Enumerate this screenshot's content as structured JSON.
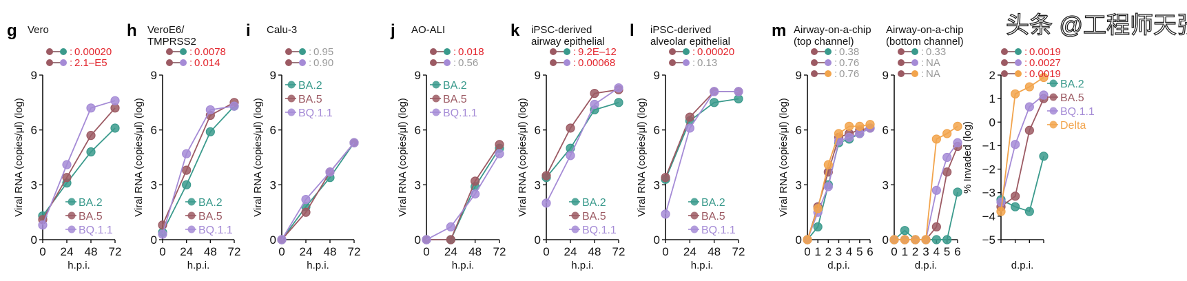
{
  "colors": {
    "BA.2": "#3a9a8c",
    "BA.5": "#9c5a63",
    "BQ.1.1": "#a58bd6",
    "Delta": "#f2a44c",
    "sig": "#e3262e",
    "ns": "#9a9a9a"
  },
  "watermark": "头条 @工程师天张",
  "chart_data": [
    {
      "id": "g",
      "letter": "g",
      "title": [
        "Vero"
      ],
      "type": "line",
      "ylabel": "Viral RNA (copies/μl) (log)",
      "xlabel": "h.p.i.",
      "x": [
        0,
        24,
        48,
        72
      ],
      "xticks": [
        "0",
        "24",
        "48",
        "72"
      ],
      "ylim": [
        0,
        9
      ],
      "yticks": [
        "0",
        "3",
        "6",
        "9"
      ],
      "pvalues": [
        {
          "pair": [
            "BA.5",
            "BA.2"
          ],
          "value": "0.00020",
          "sig": true
        },
        {
          "pair": [
            "BA.5",
            "BQ.1.1"
          ],
          "value": "2.1–E5",
          "sig": true
        }
      ],
      "legend": "bottom-right",
      "series": [
        {
          "name": "BA.2",
          "values": [
            1.3,
            3.1,
            4.8,
            6.1
          ]
        },
        {
          "name": "BA.5",
          "values": [
            1.1,
            3.4,
            5.7,
            7.2
          ]
        },
        {
          "name": "BQ.1.1",
          "values": [
            0.8,
            4.1,
            7.2,
            7.6
          ]
        }
      ]
    },
    {
      "id": "h",
      "letter": "h",
      "title": [
        "VeroE6/",
        "TMPRSS2"
      ],
      "type": "line",
      "ylabel": "Viral RNA (copies/μl) (log)",
      "xlabel": "h.p.i.",
      "x": [
        0,
        24,
        48,
        72
      ],
      "xticks": [
        "0",
        "24",
        "48",
        "72"
      ],
      "ylim": [
        0,
        9
      ],
      "yticks": [
        "0",
        "3",
        "6",
        "9"
      ],
      "pvalues": [
        {
          "pair": [
            "BA.5",
            "BA.2"
          ],
          "value": "0.0078",
          "sig": true
        },
        {
          "pair": [
            "BA.5",
            "BQ.1.1"
          ],
          "value": "0.014",
          "sig": true
        }
      ],
      "legend": "bottom-right",
      "series": [
        {
          "name": "BA.2",
          "values": [
            0.4,
            3.0,
            5.9,
            7.3
          ]
        },
        {
          "name": "BA.5",
          "values": [
            0.8,
            3.8,
            6.8,
            7.5
          ]
        },
        {
          "name": "BQ.1.1",
          "values": [
            0.3,
            4.7,
            7.1,
            7.3
          ]
        }
      ]
    },
    {
      "id": "i",
      "letter": "i",
      "title": [
        "Calu-3"
      ],
      "type": "line",
      "ylabel": "Viral RNA (copies/μl) (log)",
      "xlabel": "h.p.i.",
      "x": [
        0,
        24,
        48,
        72
      ],
      "xticks": [
        "0",
        "24",
        "48",
        "72"
      ],
      "ylim": [
        0,
        9
      ],
      "yticks": [
        "0",
        "3",
        "6",
        "9"
      ],
      "pvalues": [
        {
          "pair": [
            "BA.5",
            "BA.2"
          ],
          "value": "0.95",
          "sig": false
        },
        {
          "pair": [
            "BA.5",
            "BQ.1.1"
          ],
          "value": "0.90",
          "sig": false
        }
      ],
      "legend": "top-left",
      "series": [
        {
          "name": "BA.2",
          "values": [
            0,
            1.8,
            3.4,
            5.3
          ]
        },
        {
          "name": "BA.5",
          "values": [
            0,
            1.5,
            3.7,
            5.3
          ]
        },
        {
          "name": "BQ.1.1",
          "values": [
            0,
            2.2,
            3.7,
            5.3
          ]
        }
      ]
    },
    {
      "id": "j",
      "letter": "j",
      "title": [
        "AO-ALI"
      ],
      "type": "line",
      "ylabel": "Viral RNA (copies/μl) (log)",
      "xlabel": "h.p.i.",
      "x": [
        0,
        24,
        48,
        72
      ],
      "xticks": [
        "0",
        "24",
        "48",
        "72"
      ],
      "ylim": [
        0,
        9
      ],
      "yticks": [
        "0",
        "3",
        "6",
        "9"
      ],
      "pvalues": [
        {
          "pair": [
            "BA.5",
            "BA.2"
          ],
          "value": "0.018",
          "sig": true
        },
        {
          "pair": [
            "BA.5",
            "BQ.1.1"
          ],
          "value": "0.56",
          "sig": false
        }
      ],
      "legend": "top-left",
      "series": [
        {
          "name": "BA.2",
          "values": [
            0,
            0,
            2.9,
            5.0
          ]
        },
        {
          "name": "BA.5",
          "values": [
            0,
            0,
            3.2,
            5.2
          ]
        },
        {
          "name": "BQ.1.1",
          "values": [
            0,
            0.7,
            2.5,
            4.7
          ]
        }
      ]
    },
    {
      "id": "k",
      "letter": "k",
      "title": [
        "iPSC-derived",
        "airway epithelial"
      ],
      "type": "line",
      "ylabel": "Viral RNA (copies/μl) (log)",
      "xlabel": "h.p.i.",
      "x": [
        0,
        24,
        48,
        72
      ],
      "xticks": [
        "0",
        "24",
        "48",
        "72"
      ],
      "ylim": [
        0,
        9
      ],
      "yticks": [
        "0",
        "3",
        "6",
        "9"
      ],
      "pvalues": [
        {
          "pair": [
            "BA.5",
            "BA.2"
          ],
          "value": "9.2E–12",
          "sig": true
        },
        {
          "pair": [
            "BA.5",
            "BQ.1.1"
          ],
          "value": "0.00068",
          "sig": true
        }
      ],
      "legend": "bottom-right",
      "series": [
        {
          "name": "BA.2",
          "values": [
            3.4,
            5.0,
            7.1,
            7.5
          ]
        },
        {
          "name": "BA.5",
          "values": [
            3.5,
            6.1,
            8.0,
            8.2
          ]
        },
        {
          "name": "BQ.1.1",
          "values": [
            2.0,
            4.6,
            7.4,
            8.3
          ]
        }
      ]
    },
    {
      "id": "l",
      "letter": "l",
      "title": [
        "iPSC-derived",
        "alveolar epithelial"
      ],
      "type": "line",
      "ylabel": "Viral RNA (copies/μl) (log)",
      "xlabel": "h.p.i.",
      "x": [
        0,
        24,
        48,
        72
      ],
      "xticks": [
        "0",
        "24",
        "48",
        "72"
      ],
      "ylim": [
        0,
        9
      ],
      "yticks": [
        "0",
        "3",
        "6",
        "9"
      ],
      "pvalues": [
        {
          "pair": [
            "BA.5",
            "BA.2"
          ],
          "value": "0.00020",
          "sig": true
        },
        {
          "pair": [
            "BA.5",
            "BQ.1.1"
          ],
          "value": "0.13",
          "sig": false
        }
      ],
      "legend": "bottom-right",
      "series": [
        {
          "name": "BA.2",
          "values": [
            3.3,
            6.5,
            7.5,
            7.7
          ]
        },
        {
          "name": "BA.5",
          "values": [
            3.4,
            6.7,
            8.1,
            8.1
          ]
        },
        {
          "name": "BQ.1.1",
          "values": [
            1.4,
            6.1,
            8.1,
            8.1
          ]
        }
      ]
    },
    {
      "id": "m1",
      "letter": "m",
      "title": [
        "Airway-on-a-chip",
        "(top channel)"
      ],
      "type": "line",
      "ylabel": "Viral RNA (copies/μl) (log)",
      "xlabel": "d.p.i.",
      "x": [
        0,
        1,
        2,
        3,
        4,
        5,
        6
      ],
      "xticks": [
        "0",
        "1",
        "2",
        "3",
        "4",
        "5",
        "6"
      ],
      "ylim": [
        0,
        9
      ],
      "yticks": [
        "0",
        "3",
        "6",
        "9"
      ],
      "pvalues": [
        {
          "pair": [
            "BA.5",
            "BA.2"
          ],
          "value": "0.38",
          "sig": false
        },
        {
          "pair": [
            "BA.5",
            "BQ.1.1"
          ],
          "value": "0.76",
          "sig": false
        },
        {
          "pair": [
            "BA.5",
            "Delta"
          ],
          "value": "0.76",
          "sig": false
        }
      ],
      "legend": "none",
      "series": [
        {
          "name": "BA.2",
          "values": [
            0,
            0.7,
            3.0,
            5.3,
            5.5,
            5.8,
            6.1
          ]
        },
        {
          "name": "BA.5",
          "values": [
            0,
            1.8,
            3.7,
            5.6,
            5.8,
            6.0,
            6.1
          ]
        },
        {
          "name": "BQ.1.1",
          "values": [
            0,
            1.5,
            2.9,
            5.4,
            5.6,
            5.8,
            6.1
          ]
        },
        {
          "name": "Delta",
          "values": [
            0,
            1.7,
            4.1,
            5.8,
            6.2,
            6.2,
            6.3
          ]
        }
      ]
    },
    {
      "id": "m2",
      "letter": "",
      "title": [
        "Airway-on-a-chip",
        "(bottom channel)"
      ],
      "type": "line",
      "ylabel": "",
      "xlabel": "d.p.i.",
      "x": [
        0,
        1,
        2,
        3,
        4,
        5,
        6
      ],
      "xticks": [
        "0",
        "1",
        "2",
        "3",
        "4",
        "5",
        "6"
      ],
      "ylim": [
        0,
        9
      ],
      "yticks": [
        "0",
        "3",
        "6",
        "9"
      ],
      "pvalues": [
        {
          "pair": [
            "BA.5",
            "BA.2"
          ],
          "value": "0.33",
          "sig": false
        },
        {
          "pair": [
            "BA.5",
            "BQ.1.1"
          ],
          "value": "NA",
          "sig": false
        },
        {
          "pair": [
            "BA.5",
            "Delta"
          ],
          "value": "NA",
          "sig": false
        }
      ],
      "legend": "none",
      "series": [
        {
          "name": "BA.2",
          "values": [
            0,
            0.5,
            0,
            0,
            0,
            0,
            2.6
          ]
        },
        {
          "name": "BA.5",
          "values": [
            0,
            0,
            0,
            0,
            0.7,
            3.7,
            5.1
          ]
        },
        {
          "name": "BQ.1.1",
          "values": [
            0,
            0,
            0,
            0,
            2.7,
            4.5,
            5.3
          ]
        },
        {
          "name": "Delta",
          "values": [
            0,
            0,
            0,
            0,
            5.5,
            5.8,
            6.2
          ]
        }
      ]
    },
    {
      "id": "n",
      "letter": "",
      "title": [],
      "type": "line",
      "ylabel": "% Invaded (log)",
      "xlabel": "d.p.i.",
      "x": [
        0,
        1,
        2,
        3
      ],
      "xticks": [],
      "ylim": [
        -5,
        2
      ],
      "yticks": [
        "−5",
        "−4",
        "−3",
        "−2",
        "−1",
        "0",
        "1",
        "2"
      ],
      "pvalues": [
        {
          "pair": [
            "BA.5",
            "BA.2"
          ],
          "value": "0.0019",
          "sig": true
        },
        {
          "pair": [
            "BA.5",
            "BQ.1.1"
          ],
          "value": "0.0027",
          "sig": true
        },
        {
          "pair": [
            "BA.5",
            "Delta"
          ],
          "value": "0.0019",
          "sig": true
        }
      ],
      "legend": "right",
      "series": [
        {
          "name": "BA.2",
          "values": [
            -3.3,
            -3.6,
            -3.8,
            -1.45
          ]
        },
        {
          "name": "BA.5",
          "values": [
            -3.6,
            -3.15,
            -0.35,
            1.0
          ]
        },
        {
          "name": "BQ.1.1",
          "values": [
            -3.4,
            -0.95,
            0.65,
            1.15
          ]
        },
        {
          "name": "Delta",
          "values": [
            -3.8,
            1.2,
            1.5,
            1.9
          ]
        }
      ]
    }
  ]
}
